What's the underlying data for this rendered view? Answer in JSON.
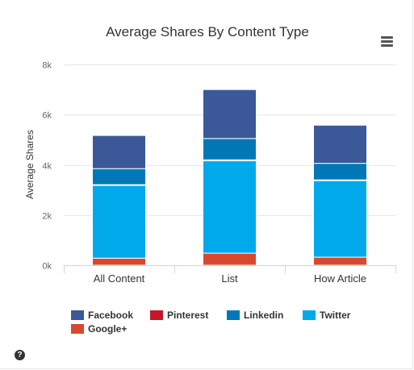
{
  "chart_data": {
    "type": "bar",
    "stacked": true,
    "title": "Average Shares By Content Type",
    "ylabel": "Average Shares",
    "xlabel": "",
    "ylim": [
      0,
      8000
    ],
    "yticks": [
      0,
      2000,
      4000,
      6000,
      8000
    ],
    "ytick_labels": [
      "0k",
      "2k",
      "4k",
      "6k",
      "8k"
    ],
    "grid": true,
    "legend_placement": "bottom-left",
    "categories": [
      "All Content",
      "List",
      "How Article"
    ],
    "series": [
      {
        "name": "Google+",
        "color": "#d7492f",
        "values": [
          280,
          480,
          320
        ]
      },
      {
        "name": "Twitter",
        "color": "#00a9ea",
        "values": [
          2900,
          3680,
          3050
        ]
      },
      {
        "name": "Pinterest",
        "color": "#c5172b",
        "values": [
          30,
          40,
          30
        ]
      },
      {
        "name": "Linkedin",
        "color": "#0078b8",
        "values": [
          640,
          850,
          660
        ]
      },
      {
        "name": "Facebook",
        "color": "#3b5998",
        "values": [
          1320,
          1950,
          1520
        ]
      }
    ]
  },
  "legend": [
    {
      "label": "Facebook",
      "color": "#3b5998"
    },
    {
      "label": "Pinterest",
      "color": "#c5172b"
    },
    {
      "label": "Linkedin",
      "color": "#0078b8"
    },
    {
      "label": "Twitter",
      "color": "#00a9ea"
    },
    {
      "label": "Google+",
      "color": "#d7492f"
    }
  ],
  "icons": {
    "menu": "hamburger-menu-icon",
    "help": "question-circle-icon"
  },
  "help_glyph": "?"
}
